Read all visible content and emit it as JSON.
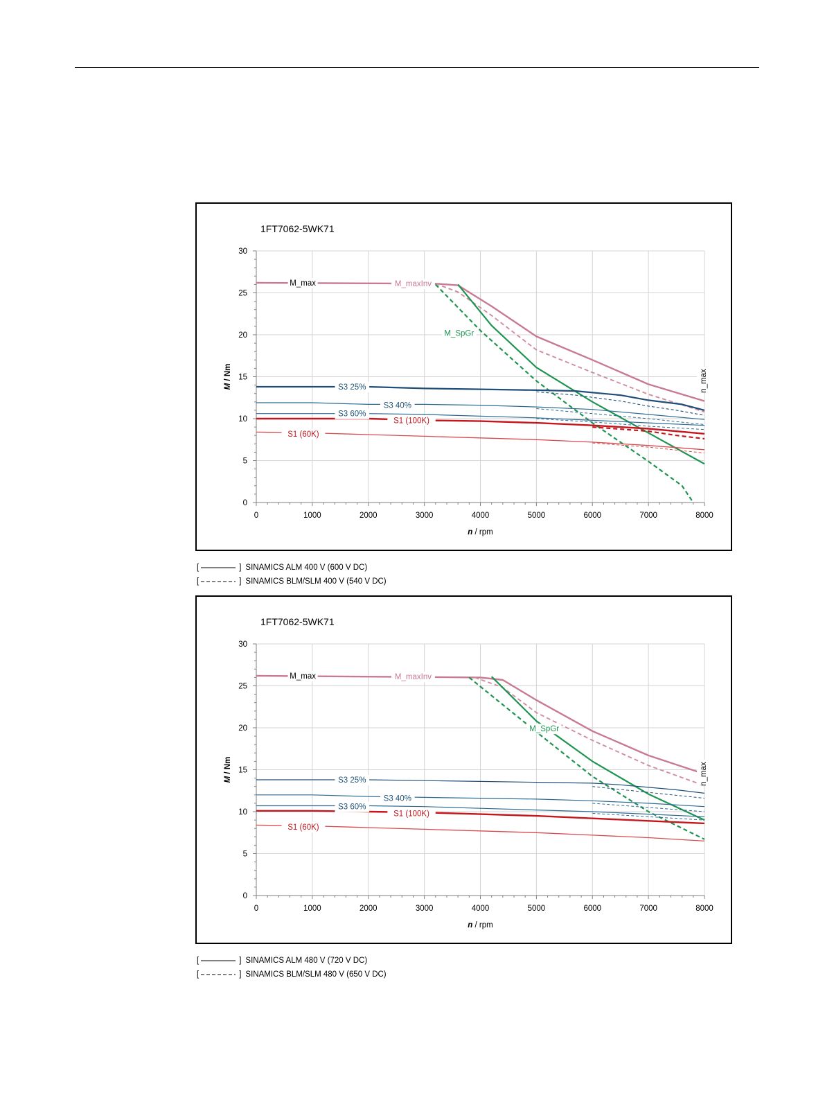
{
  "chart_data": [
    {
      "type": "line",
      "title": "1FT7062-5WK71",
      "xlabel": "n / rpm",
      "xlabel_var": "n",
      "xlabel_unit": " / rpm",
      "ylabel": "M / Nm",
      "ylabel_var": "M",
      "ylabel_unit": " / Nm",
      "xlim": [
        0,
        8000
      ],
      "ylim": [
        0,
        30
      ],
      "xticks": [
        0,
        1000,
        2000,
        3000,
        4000,
        5000,
        6000,
        7000,
        8000
      ],
      "yticks": [
        0,
        5,
        10,
        15,
        20,
        25,
        30
      ],
      "grid": true,
      "labels": [
        {
          "text": "M_max",
          "x": 830,
          "y": 26.2,
          "color": "#000000"
        },
        {
          "text": "M_maxInv",
          "x": 2800,
          "y": 26.1,
          "color": "#c87a90"
        },
        {
          "text": "M_SpGr",
          "x": 3620,
          "y": 20.2,
          "color": "#1e9450"
        },
        {
          "text": "S3 25%",
          "x": 1710,
          "y": 13.8,
          "color": "#1f5478"
        },
        {
          "text": "S3 40%",
          "x": 2520,
          "y": 11.6,
          "color": "#1f5478"
        },
        {
          "text": "S3 60%",
          "x": 1710,
          "y": 10.6,
          "color": "#1f5478"
        },
        {
          "text": "S1 (100K)",
          "x": 2770,
          "y": 9.8,
          "color": "#c4161c"
        },
        {
          "text": "S1 (60K)",
          "x": 840,
          "y": 8.2,
          "color": "#c4161c"
        }
      ],
      "nmax_label": "n_max",
      "series": [
        {
          "name": "M_max",
          "color": "#c87a90",
          "width": 2.4,
          "dash": false,
          "x": [
            0,
            3200,
            3600,
            4200,
            5000,
            6000,
            7000,
            8000
          ],
          "y": [
            26.2,
            26.1,
            25.9,
            23.4,
            19.8,
            17.0,
            14.1,
            12.1
          ]
        },
        {
          "name": "M_max",
          "color": "#d08da0",
          "width": 1.9,
          "dash": true,
          "x": [
            3200,
            3600,
            4200,
            5000,
            6000,
            7000,
            8000
          ],
          "y": [
            26.1,
            25.1,
            22.3,
            18.2,
            15.5,
            12.9,
            10.8
          ]
        },
        {
          "name": "M_SpGr",
          "color": "#1e9450",
          "width": 2.2,
          "dash": false,
          "x": [
            3600,
            4200,
            5000,
            6000,
            7000,
            8000
          ],
          "y": [
            26.0,
            21.1,
            16.1,
            12.0,
            8.3,
            4.6
          ]
        },
        {
          "name": "M_SpGr",
          "color": "#1e9450",
          "width": 2.2,
          "dash": true,
          "x": [
            3200,
            4000,
            5000,
            6000,
            7000,
            7600,
            7700,
            7800
          ],
          "y": [
            26.0,
            20.5,
            14.5,
            9.5,
            4.9,
            2.0,
            1.0,
            0
          ]
        },
        {
          "name": "S3 25%",
          "color": "#1f4e79",
          "width": 2.2,
          "dash": false,
          "x": [
            0,
            1000,
            2000,
            3000,
            4000,
            5000,
            5700,
            6500,
            7000,
            7600,
            8000
          ],
          "y": [
            13.8,
            13.8,
            13.8,
            13.6,
            13.5,
            13.4,
            13.3,
            12.8,
            12.2,
            11.7,
            11.0
          ]
        },
        {
          "name": "S3 25%",
          "color": "#1f4e79",
          "width": 1.1,
          "dash": true,
          "x": [
            5000,
            5700,
            6500,
            7000,
            7500,
            8000
          ],
          "y": [
            13.2,
            12.8,
            12.1,
            11.5,
            11.0,
            10.4
          ]
        },
        {
          "name": "S3 40%",
          "color": "#2c6a92",
          "width": 1.2,
          "dash": false,
          "x": [
            0,
            1000,
            2000,
            3000,
            4000,
            5000,
            6000,
            7000,
            8000
          ],
          "y": [
            11.9,
            11.9,
            11.7,
            11.7,
            11.6,
            11.4,
            11.1,
            10.5,
            9.9
          ]
        },
        {
          "name": "S3 40%",
          "color": "#2c6a92",
          "width": 1.0,
          "dash": true,
          "x": [
            5000,
            6000,
            7000,
            8000
          ],
          "y": [
            11.2,
            10.6,
            10.0,
            9.3
          ]
        },
        {
          "name": "S3 60%",
          "color": "#2c6a92",
          "width": 1.2,
          "dash": false,
          "x": [
            0,
            1000,
            2000,
            3000,
            4000,
            5000,
            6000,
            7000,
            8000
          ],
          "y": [
            10.6,
            10.6,
            10.6,
            10.5,
            10.3,
            10.1,
            9.8,
            9.5,
            9.2
          ]
        },
        {
          "name": "S3 60%",
          "color": "#2c6a92",
          "width": 1.0,
          "dash": true,
          "x": [
            5000,
            6000,
            7000,
            8000
          ],
          "y": [
            10.0,
            9.6,
            9.1,
            8.7
          ]
        },
        {
          "name": "S1 (100K)",
          "color": "#c4161c",
          "width": 2.4,
          "dash": false,
          "x": [
            0,
            1000,
            2000,
            3000,
            4000,
            5000,
            6000,
            7000,
            8000
          ],
          "y": [
            10.0,
            10.0,
            10.0,
            9.8,
            9.7,
            9.5,
            9.2,
            8.8,
            8.2
          ]
        },
        {
          "name": "S1 (100K)",
          "color": "#c4161c",
          "width": 2.2,
          "dash": true,
          "x": [
            6000,
            7000,
            7500,
            8000
          ],
          "y": [
            9.0,
            8.5,
            8.0,
            7.6
          ]
        },
        {
          "name": "S1 (60K)",
          "color": "#d84a4e",
          "width": 1.3,
          "dash": false,
          "x": [
            0,
            1000,
            2000,
            3000,
            4000,
            5000,
            6000,
            7000,
            8000
          ],
          "y": [
            8.4,
            8.3,
            8.1,
            7.9,
            7.7,
            7.5,
            7.2,
            6.8,
            6.3
          ]
        },
        {
          "name": "S1 (60K)",
          "color": "#d84a4e",
          "width": 1.0,
          "dash": true,
          "x": [
            6000,
            7000,
            8000
          ],
          "y": [
            7.1,
            6.6,
            5.9
          ]
        }
      ]
    },
    {
      "type": "line",
      "title": "1FT7062-5WK71",
      "xlabel": "n / rpm",
      "xlabel_var": "n",
      "xlabel_unit": " / rpm",
      "ylabel": "M / Nm",
      "ylabel_var": "M",
      "ylabel_unit": " / Nm",
      "xlim": [
        0,
        8000
      ],
      "ylim": [
        0,
        30
      ],
      "xticks": [
        0,
        1000,
        2000,
        3000,
        4000,
        5000,
        6000,
        7000,
        8000
      ],
      "yticks": [
        0,
        5,
        10,
        15,
        20,
        25,
        30
      ],
      "grid": true,
      "labels": [
        {
          "text": "M_max",
          "x": 830,
          "y": 26.2,
          "color": "#000000"
        },
        {
          "text": "M_maxInv",
          "x": 2800,
          "y": 26.1,
          "color": "#c87a90"
        },
        {
          "text": "M_SpGr",
          "x": 5140,
          "y": 19.9,
          "color": "#1e9450"
        },
        {
          "text": "S3 25%",
          "x": 1710,
          "y": 13.8,
          "color": "#1f5478"
        },
        {
          "text": "S3 40%",
          "x": 2520,
          "y": 11.6,
          "color": "#1f5478"
        },
        {
          "text": "S3 60%",
          "x": 1710,
          "y": 10.6,
          "color": "#1f5478"
        },
        {
          "text": "S1 (100K)",
          "x": 2770,
          "y": 9.8,
          "color": "#c4161c"
        },
        {
          "text": "S1 (60K)",
          "x": 840,
          "y": 8.2,
          "color": "#c4161c"
        }
      ],
      "nmax_label": "n_max",
      "series": [
        {
          "name": "M_max",
          "color": "#c87a90",
          "width": 2.4,
          "dash": false,
          "x": [
            0,
            4000,
            4400,
            5000,
            6000,
            7000,
            8000
          ],
          "y": [
            26.2,
            26.0,
            25.7,
            23.3,
            19.6,
            16.7,
            14.5
          ]
        },
        {
          "name": "M_max",
          "color": "#d08da0",
          "width": 1.9,
          "dash": true,
          "x": [
            3900,
            4400,
            5000,
            6000,
            7000,
            8000
          ],
          "y": [
            26.0,
            24.8,
            21.8,
            18.5,
            15.5,
            13.1
          ]
        },
        {
          "name": "M_SpGr",
          "color": "#1e9450",
          "width": 2.2,
          "dash": false,
          "x": [
            4200,
            5000,
            6000,
            7000,
            8000
          ],
          "y": [
            26.1,
            20.8,
            16.0,
            12.1,
            9.0
          ]
        },
        {
          "name": "M_SpGr",
          "color": "#1e9450",
          "width": 2.2,
          "dash": true,
          "x": [
            3800,
            5000,
            6000,
            7000,
            8000
          ],
          "y": [
            26.0,
            19.5,
            14.2,
            10.0,
            6.7
          ]
        },
        {
          "name": "S3 25%",
          "color": "#1f4e79",
          "width": 1.2,
          "dash": false,
          "x": [
            0,
            1000,
            2000,
            3000,
            4000,
            5000,
            6000,
            6500,
            7000,
            7500,
            8000
          ],
          "y": [
            13.8,
            13.8,
            13.8,
            13.7,
            13.6,
            13.5,
            13.4,
            13.2,
            12.9,
            12.6,
            12.2
          ]
        },
        {
          "name": "S3 25%",
          "color": "#1f4e79",
          "width": 1.0,
          "dash": true,
          "x": [
            6000,
            7000,
            8000
          ],
          "y": [
            13.0,
            12.3,
            11.6
          ]
        },
        {
          "name": "S3 40%",
          "color": "#2c6a92",
          "width": 1.2,
          "dash": false,
          "x": [
            0,
            1000,
            2000,
            3000,
            4000,
            5000,
            6000,
            7000,
            8000
          ],
          "y": [
            12.0,
            12.0,
            11.8,
            11.7,
            11.6,
            11.5,
            11.3,
            11.0,
            10.6
          ]
        },
        {
          "name": "S3 40%",
          "color": "#2c6a92",
          "width": 1.0,
          "dash": true,
          "x": [
            6000,
            7000,
            8000
          ],
          "y": [
            11.0,
            10.5,
            10.0
          ]
        },
        {
          "name": "S3 60%",
          "color": "#2c6a92",
          "width": 1.2,
          "dash": false,
          "x": [
            0,
            1000,
            2000,
            3000,
            4000,
            5000,
            6000,
            7000,
            8000
          ],
          "y": [
            10.7,
            10.7,
            10.7,
            10.6,
            10.4,
            10.2,
            10.0,
            9.7,
            9.4
          ]
        },
        {
          "name": "S3 60%",
          "color": "#2c6a92",
          "width": 1.0,
          "dash": true,
          "x": [
            6000,
            7000,
            8000
          ],
          "y": [
            9.8,
            9.4,
            9.0
          ]
        },
        {
          "name": "S1 (100K)",
          "color": "#c4161c",
          "width": 2.4,
          "dash": false,
          "x": [
            0,
            1000,
            2000,
            3000,
            4000,
            5000,
            6000,
            7000,
            8000
          ],
          "y": [
            10.1,
            10.1,
            10.0,
            9.9,
            9.7,
            9.5,
            9.2,
            8.9,
            8.6
          ]
        },
        {
          "name": "S1 (60K)",
          "color": "#d84a4e",
          "width": 1.3,
          "dash": false,
          "x": [
            0,
            1000,
            2000,
            3000,
            4000,
            5000,
            6000,
            7000,
            8000
          ],
          "y": [
            8.4,
            8.3,
            8.1,
            7.9,
            7.7,
            7.5,
            7.2,
            6.9,
            6.5
          ]
        }
      ]
    }
  ],
  "legends": [
    [
      {
        "text": "SINAMICS ALM 400 V (600 V DC)",
        "dash": false
      },
      {
        "text": "SINAMICS BLM/SLM 400 V (540 V DC)",
        "dash": true
      }
    ],
    [
      {
        "text": "SINAMICS ALM 480 V (720 V DC)",
        "dash": false
      },
      {
        "text": "SINAMICS BLM/SLM 480 V (650 V DC)",
        "dash": true
      }
    ]
  ]
}
